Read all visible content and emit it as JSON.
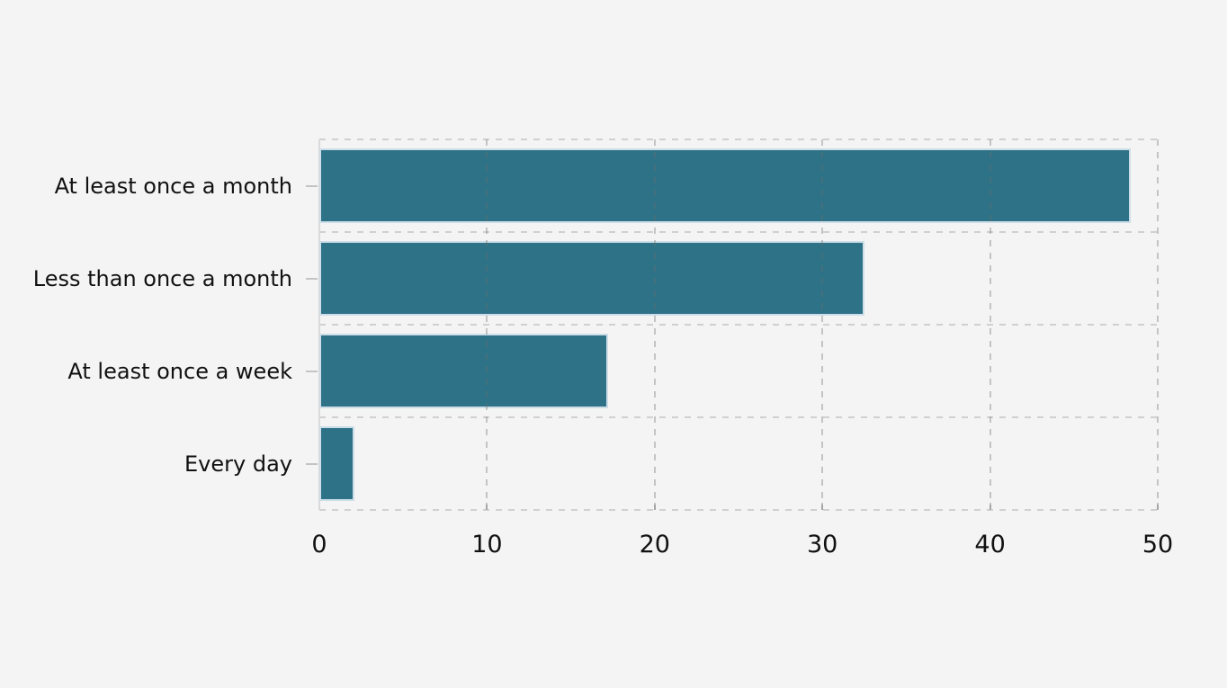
{
  "chart_data": {
    "type": "bar",
    "orientation": "horizontal",
    "categories": [
      "At least once a month",
      "Less than once a month",
      "At least once a week",
      "Every day"
    ],
    "values": [
      48.4,
      32.5,
      17.2,
      2.1
    ],
    "x_axis": {
      "ticks": [
        0,
        10,
        20,
        30,
        40,
        50
      ],
      "range": [
        0,
        50
      ]
    },
    "grid": {
      "style": "dashed",
      "vertical_lines": true,
      "horizontal_lines": "band-boundaries",
      "frame": "dashed"
    },
    "legend_visible": false,
    "colors": {
      "bar_fill": "#2e7287",
      "bar_stroke": "#cddee8",
      "background": "#f4f4f4",
      "gridline": "#d0d0d0",
      "grid_overlay": "rgba(107,107,107,0.35)",
      "axis_line": "#dadada",
      "tick_mark": "#c4c4c4",
      "text": "#111111"
    }
  }
}
